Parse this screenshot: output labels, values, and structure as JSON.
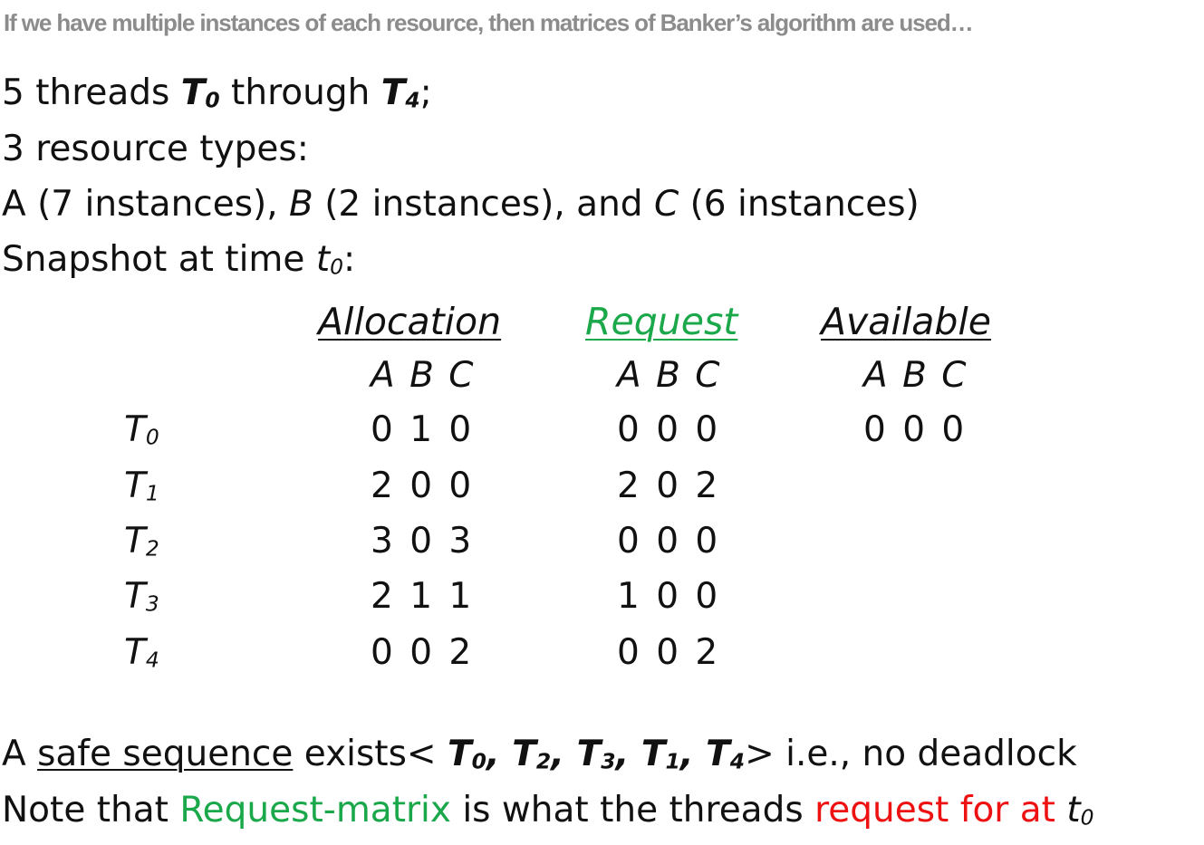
{
  "header": "If we have multiple  instances of each resource, then matrices of Banker’s algorithm are used…",
  "intro": {
    "line1": {
      "a": "5 threads ",
      "t0": "T",
      "t0sub": "0",
      "mid": " through ",
      "t4": "T",
      "t4sub": "4",
      "end": ";"
    },
    "line2": "3 resource types:",
    "line3": {
      "a": "A (7 instances), ",
      "b": "B",
      "c": " (2 instances), and ",
      "d": "C",
      "e": " (6 instances)"
    },
    "line4": {
      "a": "Snapshot at time ",
      "t": "t",
      "tsub": "0",
      "end": ":"
    }
  },
  "table": {
    "headers": {
      "allocation": "Allocation",
      "request": "Request",
      "available": "Available"
    },
    "abc": "A B C",
    "threads": [
      {
        "name": "T",
        "sub": "0",
        "allocation": "0 1 0",
        "request": "0 0 0",
        "available": "0 0 0"
      },
      {
        "name": "T",
        "sub": "1",
        "allocation": "2 0 0",
        "request": "2 0 2",
        "available": ""
      },
      {
        "name": "T",
        "sub": "2",
        "allocation": "3 0 3",
        "request": "0 0 0",
        "available": ""
      },
      {
        "name": "T",
        "sub": "3",
        "allocation": "2 1 1",
        "request": "1 0 0",
        "available": ""
      },
      {
        "name": "T",
        "sub": "4",
        "allocation": "0 0 2",
        "request": "0 0 2",
        "available": ""
      }
    ]
  },
  "footer": {
    "line1": {
      "a": "A ",
      "safe": "safe sequence",
      "b": " exists< ",
      "seq": [
        {
          "t": "T",
          "sub": "0",
          "sep": ", "
        },
        {
          "t": "T",
          "sub": "2",
          "sep": ", "
        },
        {
          "t": "T",
          "sub": "3",
          "sep": ", "
        },
        {
          "t": "T",
          "sub": "1",
          "sep": ", "
        },
        {
          "t": "T",
          "sub": "4",
          "sep": ""
        }
      ],
      "c": "> i.e., no deadlock"
    },
    "line2": {
      "a": "Note that ",
      "green": "Request-matrix",
      "b": " is what the threads ",
      "red": "request for at ",
      "t": "t",
      "tsub": "0"
    }
  },
  "colors": {
    "header_gray": "#8c8c8c",
    "request_green": "#1aa84a",
    "highlight_red": "#ee1111",
    "text": "#111111"
  }
}
